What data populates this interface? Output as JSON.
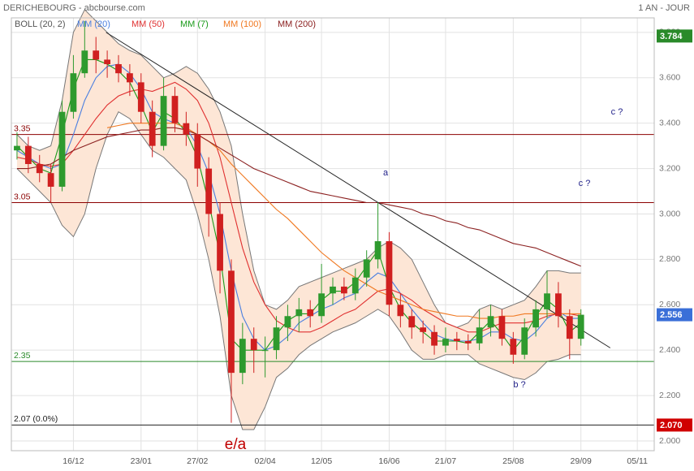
{
  "header": {
    "title": "DERICHEBOURG - abcbourse.com",
    "period": "1 AN - JOUR"
  },
  "chart_data": {
    "type": "candlestick",
    "categories": [
      null,
      null,
      null,
      null,
      null,
      "16/12",
      null,
      null,
      null,
      null,
      null,
      "23/01",
      null,
      null,
      null,
      null,
      "27/02",
      null,
      null,
      null,
      null,
      null,
      "02/04",
      null,
      null,
      null,
      null,
      "12/05",
      null,
      null,
      null,
      null,
      null,
      "16/06",
      null,
      null,
      null,
      null,
      "21/07",
      null,
      null,
      null,
      null,
      null,
      "25/08",
      null,
      null,
      null,
      null,
      null,
      "29/09",
      null,
      null,
      null,
      null,
      "05/11",
      null
    ],
    "open": [
      3.28,
      3.3,
      3.22,
      3.18,
      3.12,
      3.45,
      3.62,
      3.72,
      3.68,
      3.66,
      3.62,
      3.58,
      3.45,
      3.3,
      3.52,
      3.4,
      3.35,
      3.2,
      3.0,
      2.75,
      2.3,
      2.45,
      2.4,
      2.4,
      2.5,
      2.55,
      2.58,
      2.55,
      2.65,
      2.68,
      2.65,
      2.72,
      2.8,
      2.88,
      2.6,
      2.55,
      2.5,
      2.48,
      2.42,
      2.45,
      2.44,
      2.43,
      2.5,
      2.55,
      2.45,
      2.38,
      2.5,
      2.58,
      2.65,
      2.55,
      2.45,
      null,
      null,
      null,
      null,
      null,
      null
    ],
    "high": [
      3.36,
      3.34,
      3.26,
      3.22,
      3.5,
      3.7,
      3.85,
      3.78,
      3.72,
      3.7,
      3.66,
      3.62,
      3.5,
      3.6,
      3.56,
      3.45,
      3.4,
      3.25,
      3.05,
      2.8,
      2.52,
      2.5,
      2.46,
      2.55,
      2.6,
      2.63,
      2.62,
      2.78,
      2.72,
      2.72,
      2.76,
      2.84,
      3.05,
      2.92,
      2.65,
      2.58,
      2.53,
      2.51,
      2.5,
      2.48,
      2.47,
      2.58,
      2.6,
      2.58,
      2.48,
      2.54,
      2.62,
      2.75,
      2.7,
      2.58,
      2.58,
      null,
      null,
      null,
      null,
      null,
      null
    ],
    "low": [
      3.24,
      3.18,
      3.14,
      3.05,
      3.1,
      3.42,
      3.6,
      3.62,
      3.6,
      3.58,
      3.52,
      3.4,
      3.25,
      3.28,
      3.36,
      3.3,
      3.12,
      2.9,
      2.65,
      2.08,
      2.25,
      2.3,
      2.28,
      2.36,
      2.44,
      2.48,
      2.5,
      2.52,
      2.6,
      2.62,
      2.62,
      2.68,
      2.76,
      2.55,
      2.5,
      2.45,
      2.43,
      2.38,
      2.39,
      2.4,
      2.4,
      2.4,
      2.46,
      2.42,
      2.34,
      2.36,
      2.46,
      2.54,
      2.5,
      2.36,
      2.42,
      null,
      null,
      null,
      null,
      null,
      null
    ],
    "close": [
      3.3,
      3.22,
      3.18,
      3.12,
      3.45,
      3.62,
      3.72,
      3.68,
      3.66,
      3.62,
      3.58,
      3.45,
      3.3,
      3.52,
      3.4,
      3.35,
      3.2,
      3.0,
      2.75,
      2.3,
      2.45,
      2.4,
      2.4,
      2.5,
      2.55,
      2.58,
      2.55,
      2.65,
      2.68,
      2.65,
      2.72,
      2.8,
      2.88,
      2.6,
      2.55,
      2.5,
      2.48,
      2.42,
      2.45,
      2.44,
      2.43,
      2.5,
      2.55,
      2.45,
      2.38,
      2.5,
      2.58,
      2.65,
      2.55,
      2.45,
      2.556,
      null,
      null,
      null,
      null,
      null,
      null
    ],
    "up_color": "#2e9a2e",
    "down_color": "#d02020",
    "bollinger": {
      "name": "BOLL (20, 2)",
      "color": "#777777",
      "fill": "#fde6d6",
      "upper": [
        3.35,
        3.3,
        3.28,
        3.3,
        3.5,
        3.8,
        3.9,
        3.85,
        3.8,
        3.75,
        3.72,
        3.7,
        3.65,
        3.6,
        3.62,
        3.65,
        3.62,
        3.55,
        3.45,
        3.3,
        3.0,
        2.75,
        2.6,
        2.58,
        2.62,
        2.68,
        2.7,
        2.72,
        2.74,
        2.76,
        2.78,
        2.8,
        2.85,
        2.88,
        2.85,
        2.8,
        2.7,
        2.6,
        2.52,
        2.5,
        2.52,
        2.58,
        2.6,
        2.58,
        2.6,
        2.62,
        2.68,
        2.75,
        2.75,
        2.74,
        2.74,
        null,
        null,
        null,
        null,
        null,
        null
      ],
      "lower": [
        3.2,
        3.15,
        3.1,
        3.05,
        2.95,
        2.9,
        3.0,
        3.2,
        3.35,
        3.45,
        3.42,
        3.35,
        3.28,
        3.25,
        3.2,
        3.15,
        3.0,
        2.8,
        2.55,
        2.2,
        2.05,
        2.05,
        2.15,
        2.28,
        2.32,
        2.38,
        2.42,
        2.45,
        2.48,
        2.5,
        2.52,
        2.55,
        2.58,
        2.55,
        2.48,
        2.4,
        2.36,
        2.36,
        2.38,
        2.38,
        2.38,
        2.34,
        2.32,
        2.3,
        2.28,
        2.27,
        2.3,
        2.35,
        2.36,
        2.38,
        2.38,
        null,
        null,
        null,
        null,
        null,
        null
      ]
    },
    "series": [
      {
        "name": "MM (20)",
        "color": "#4a7fe0",
        "values": [
          3.28,
          3.25,
          3.22,
          3.2,
          3.22,
          3.35,
          3.5,
          3.6,
          3.65,
          3.66,
          3.62,
          3.55,
          3.45,
          3.42,
          3.4,
          3.38,
          3.3,
          3.18,
          3.0,
          2.75,
          2.55,
          2.45,
          2.4,
          2.42,
          2.46,
          2.52,
          2.55,
          2.58,
          2.6,
          2.63,
          2.65,
          2.7,
          2.74,
          2.72,
          2.65,
          2.58,
          2.52,
          2.47,
          2.45,
          2.44,
          2.44,
          2.45,
          2.48,
          2.48,
          2.45,
          2.44,
          2.48,
          2.54,
          2.57,
          2.54,
          2.54,
          null,
          null,
          null,
          null,
          null,
          null
        ]
      },
      {
        "name": "MM (50)",
        "color": "#e03030",
        "values": [
          3.25,
          3.24,
          3.22,
          3.21,
          3.22,
          3.28,
          3.35,
          3.42,
          3.48,
          3.52,
          3.54,
          3.55,
          3.54,
          3.56,
          3.58,
          3.55,
          3.5,
          3.4,
          3.25,
          3.05,
          2.85,
          2.7,
          2.6,
          2.53,
          2.5,
          2.48,
          2.48,
          2.5,
          2.53,
          2.56,
          2.58,
          2.62,
          2.66,
          2.67,
          2.65,
          2.62,
          2.58,
          2.55,
          2.52,
          2.5,
          2.48,
          2.48,
          2.5,
          2.52,
          2.52,
          2.52,
          2.53,
          2.55,
          2.56,
          2.56,
          2.55,
          null,
          null,
          null,
          null,
          null,
          null
        ]
      },
      {
        "name": "MM (7)",
        "color": "#1a9a1a",
        "values": [
          3.3,
          3.25,
          3.2,
          3.18,
          3.35,
          3.55,
          3.68,
          3.68,
          3.66,
          3.63,
          3.58,
          3.48,
          3.36,
          3.45,
          3.42,
          3.36,
          3.25,
          3.05,
          2.82,
          2.45,
          2.4,
          2.4,
          2.4,
          2.47,
          2.53,
          2.56,
          2.56,
          2.62,
          2.66,
          2.66,
          2.7,
          2.77,
          2.84,
          2.68,
          2.58,
          2.52,
          2.48,
          2.44,
          2.44,
          2.44,
          2.43,
          2.48,
          2.53,
          2.47,
          2.4,
          2.46,
          2.55,
          2.62,
          2.58,
          2.48,
          2.52,
          null,
          null,
          null,
          null,
          null,
          null
        ]
      },
      {
        "name": "MM (100)",
        "color": "#f07820",
        "values": [
          null,
          null,
          null,
          null,
          null,
          null,
          null,
          null,
          3.38,
          3.39,
          3.4,
          3.4,
          3.4,
          3.4,
          3.4,
          3.38,
          3.35,
          3.32,
          3.28,
          3.22,
          3.17,
          3.12,
          3.07,
          3.02,
          2.98,
          2.93,
          2.88,
          2.83,
          2.79,
          2.75,
          2.72,
          2.69,
          2.66,
          2.64,
          2.62,
          2.6,
          2.58,
          2.57,
          2.56,
          2.55,
          2.55,
          2.54,
          2.54,
          2.55,
          2.55,
          2.56,
          2.56,
          2.56,
          2.56,
          2.56,
          2.56,
          null,
          null,
          null,
          null,
          null,
          null
        ]
      },
      {
        "name": "MM (200)",
        "color": "#8b2020",
        "values": [
          3.2,
          3.2,
          3.21,
          3.22,
          3.25,
          3.28,
          3.3,
          3.32,
          3.34,
          3.35,
          3.36,
          3.37,
          3.37,
          3.38,
          3.38,
          3.37,
          3.35,
          3.32,
          3.29,
          3.26,
          3.23,
          3.2,
          3.18,
          3.16,
          3.14,
          3.12,
          3.1,
          3.09,
          3.08,
          3.07,
          3.06,
          3.05,
          3.05,
          3.04,
          3.03,
          3.02,
          3.0,
          2.99,
          2.97,
          2.96,
          2.94,
          2.93,
          2.91,
          2.89,
          2.87,
          2.86,
          2.85,
          2.83,
          2.81,
          2.79,
          2.77,
          null,
          null,
          null,
          null,
          null,
          null
        ]
      }
    ],
    "levels": [
      {
        "value": 3.35,
        "label": "3.35",
        "color": "#8b0000"
      },
      {
        "value": 3.05,
        "label": "3.05",
        "color": "#8b0000"
      },
      {
        "value": 2.35,
        "label": "2.35",
        "color": "#2a8a2a"
      },
      {
        "value": 2.07,
        "label": "2.07 (0.0%)",
        "color": "#222222"
      }
    ],
    "trendline": {
      "color": "#222222",
      "x": [
        7.9,
        52.6
      ],
      "values": [
        3.8,
        2.41
      ]
    },
    "last_values": [
      {
        "value": 3.784,
        "label": "3.784",
        "color": "#2a8a2a"
      },
      {
        "value": 2.556,
        "label": "2.556",
        "color": "#3a6fd8"
      },
      {
        "value": 2.07,
        "label": "2.070",
        "color": "#d00000"
      }
    ],
    "annotations": [
      "a",
      "c ?",
      "c ?",
      "b ?",
      "e/a"
    ],
    "ylim": [
      1.957,
      3.864
    ],
    "yticks": [
      {
        "value": 2.0,
        "label": "2.000"
      },
      {
        "value": 2.2,
        "label": "2.200"
      },
      {
        "value": 2.4,
        "label": "2.400"
      },
      {
        "value": 2.6,
        "label": "2.600"
      },
      {
        "value": 2.8,
        "label": "2.800"
      },
      {
        "value": 3.0,
        "label": "3.000"
      },
      {
        "value": 3.2,
        "label": "3.200"
      },
      {
        "value": 3.4,
        "label": "3.400"
      },
      {
        "value": 3.6,
        "label": "3.600"
      },
      {
        "value": 3.8,
        "label": "3.800"
      }
    ],
    "grid": true
  }
}
